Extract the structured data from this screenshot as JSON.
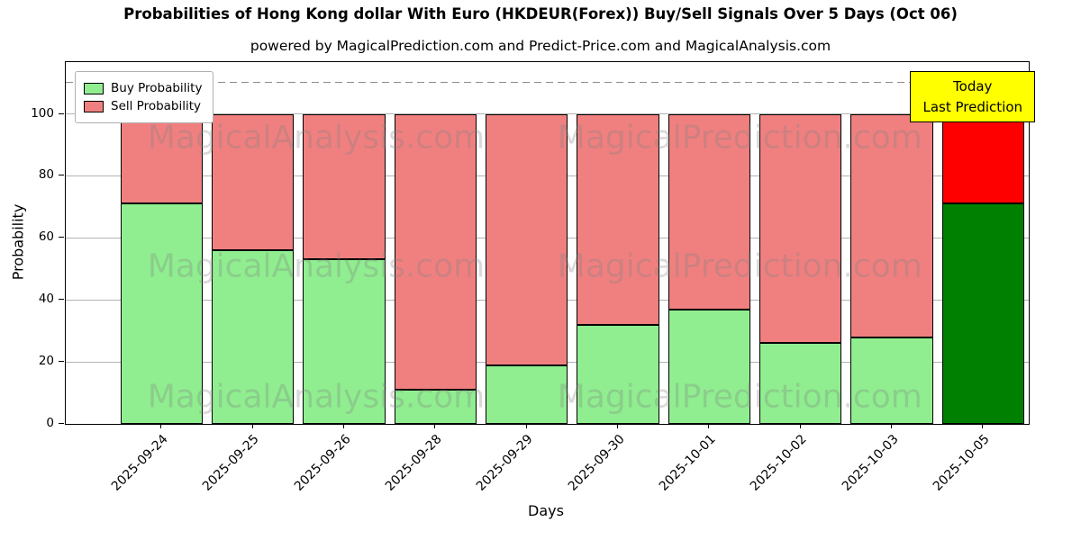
{
  "figure": {
    "title": "Probabilities of Hong Kong dollar With Euro (HKDEUR(Forex)) Buy/Sell Signals Over 5 Days (Oct 06)",
    "subtitle": "powered by MagicalPrediction.com and Predict-Price.com and MagicalAnalysis.com",
    "xlabel": "Days",
    "ylabel": "Probability"
  },
  "legend": {
    "items": [
      {
        "label": "Buy Probability",
        "color": "#90EE90"
      },
      {
        "label": "Sell Probability",
        "color": "#F08080"
      }
    ]
  },
  "annotation": {
    "line1": "Today",
    "line2": "Last Prediction",
    "bg": "#FFFF00"
  },
  "watermarks": {
    "left": "MagicalAnalysis.com",
    "right": "MagicalPrediction.com"
  },
  "chart_data": {
    "type": "bar",
    "stacked": true,
    "title": "Probabilities of Hong Kong dollar With Euro (HKDEUR(Forex)) Buy/Sell Signals Over 5 Days (Oct 06)",
    "xlabel": "Days",
    "ylabel": "Probability",
    "categories": [
      "2025-09-24",
      "2025-09-25",
      "2025-09-26",
      "2025-09-28",
      "2025-09-29",
      "2025-09-30",
      "2025-10-01",
      "2025-10-02",
      "2025-10-03",
      "2025-10-05"
    ],
    "series": [
      {
        "name": "Buy Probability",
        "values": [
          71,
          56,
          53,
          11,
          19,
          32,
          37,
          26,
          28,
          71
        ],
        "color": "#90EE90",
        "last_bar_color": "#008000"
      },
      {
        "name": "Sell Probability",
        "values": [
          29,
          44,
          47,
          89,
          81,
          68,
          63,
          74,
          72,
          29
        ],
        "color": "#F08080",
        "last_bar_color": "#FF0000"
      }
    ],
    "ylim": [
      0,
      116.7
    ],
    "yticks": [
      0,
      20,
      40,
      60,
      80,
      100
    ],
    "dashed_guide_y": 110,
    "grid": true,
    "legend_position": "upper left"
  }
}
